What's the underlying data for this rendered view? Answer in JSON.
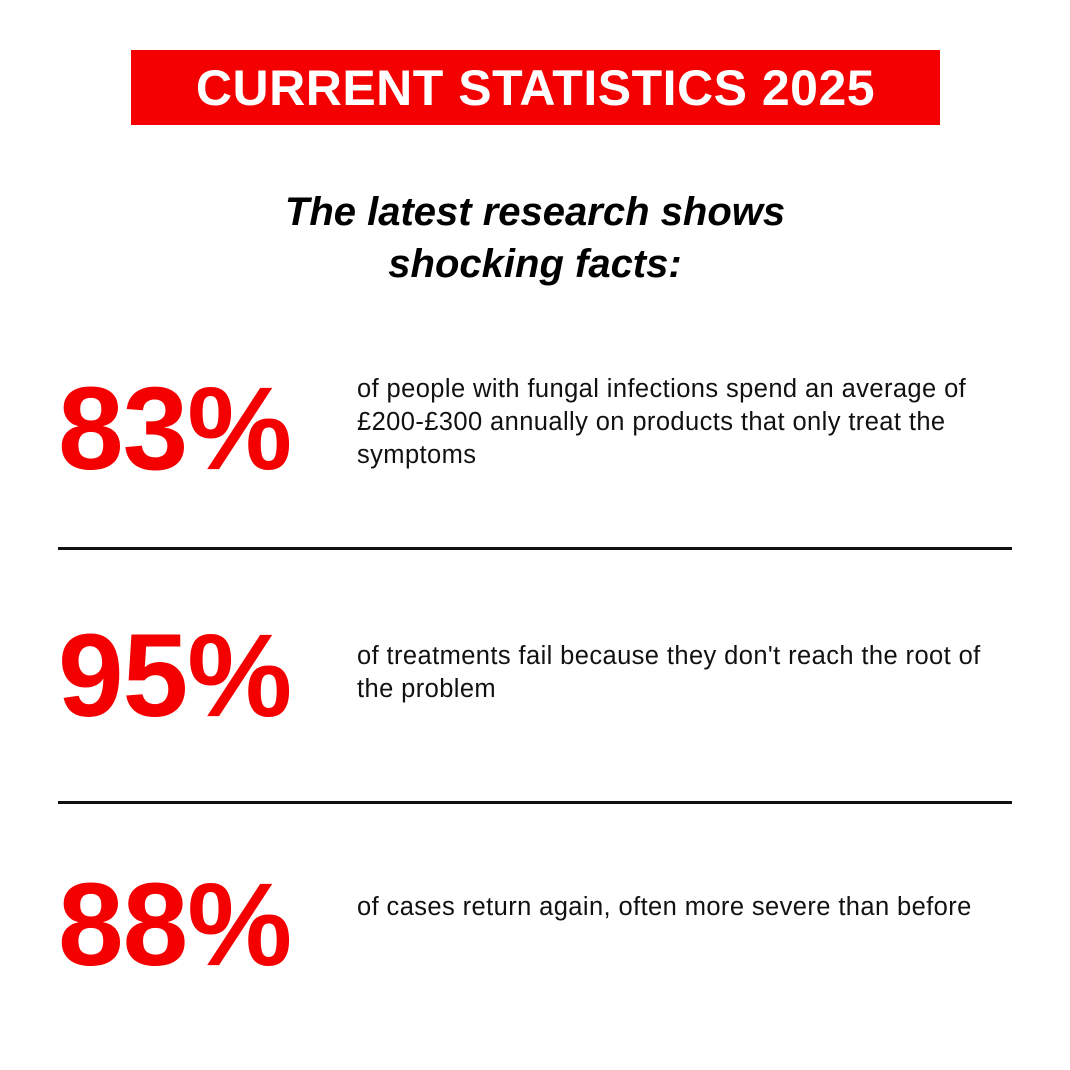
{
  "header": {
    "title": "CURRENT STATISTICS 2025"
  },
  "subtitle": {
    "line1": "The latest research shows",
    "line2": "shocking facts:"
  },
  "colors": {
    "accent": "#f50000",
    "text": "#111111",
    "background": "#ffffff"
  },
  "stats": [
    {
      "value": "83%",
      "text": "of people with fungal infections spend an average of £200-£300 annually on products that only treat the symptoms"
    },
    {
      "value": "95%",
      "text": "of treatments fail because they don't reach the root of the problem"
    },
    {
      "value": "88%",
      "text": "of cases return again, often more severe than before"
    }
  ]
}
